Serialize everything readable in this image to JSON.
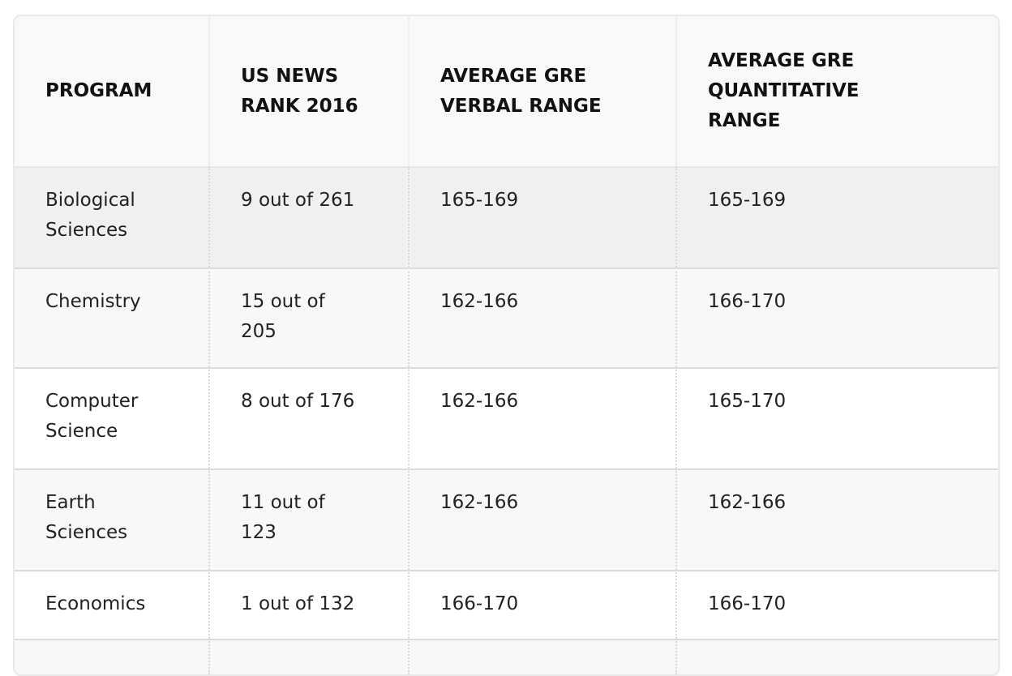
{
  "chart_data": {
    "type": "table",
    "columns": [
      "PROGRAM",
      "US NEWS RANK 2016",
      "AVERAGE GRE VERBAL RANGE",
      "AVERAGE GRE QUANTITATIVE RANGE"
    ],
    "rows": [
      [
        "Biological Sciences",
        "9 out of 261",
        "165-169",
        "165-169"
      ],
      [
        "Chemistry",
        "15 out of 205",
        "162-166",
        "166-170"
      ],
      [
        "Computer Science",
        "8 out of 176",
        "162-166",
        "165-170"
      ],
      [
        "Earth Sciences",
        "11 out of 123",
        "162-166",
        "162-166"
      ],
      [
        "Economics",
        "1 out of 132",
        "166-170",
        "166-170"
      ]
    ],
    "partial_sixth_row_visible": true
  },
  "colors": {
    "header_bg": "#f9f9f9",
    "row_highlight_bg": "#f0f0f0",
    "row_alt_bg": "#f8f8f8",
    "row_bg": "#ffffff",
    "outer_border": "#e9e9e9",
    "row_border": "#dcdcdc",
    "column_divider_dotted": "#d9d9d9",
    "header_divider": "#eeeeee",
    "header_text": "#111111",
    "body_text": "#222222"
  }
}
